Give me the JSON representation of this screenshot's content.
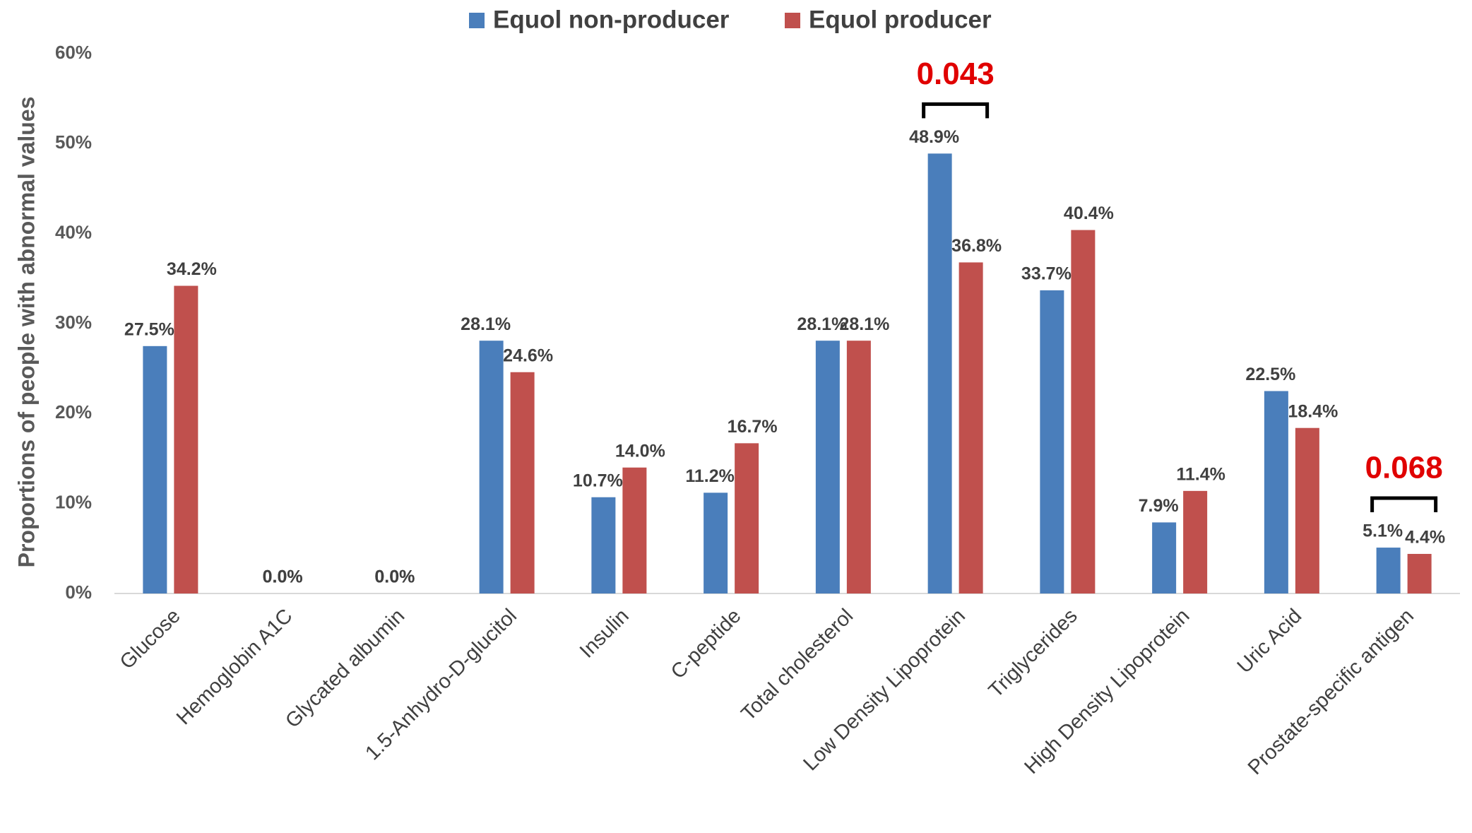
{
  "chart_data": {
    "type": "bar",
    "y_axis_label": "Proportions of people with  abnormal values",
    "categories": [
      "Glucose",
      "Hemoglobin A1C",
      "Glycated albumin",
      "1.5-Anhydro-D-glucitol",
      "Insulin",
      "C-peptide",
      "Total cholesterol",
      "Low Density Lipoprotein",
      "Triglycerides",
      "High Density Lipoprotein",
      "Uric Acid",
      "Prostate-specific antigen"
    ],
    "series": [
      {
        "name": "Equol non-producer",
        "color": "#4a7ebb",
        "values": [
          27.5,
          0,
          0,
          28.1,
          10.7,
          11.2,
          28.1,
          48.9,
          33.7,
          7.9,
          22.5,
          5.1
        ],
        "value_labels": [
          "27.5%",
          "0.0%",
          "0.0%",
          "28.1%",
          "10.7%",
          "11.2%",
          "28.1%",
          "48.9%",
          "33.7%",
          "7.9%",
          "22.5%",
          "5.1%"
        ]
      },
      {
        "name": "Equol producer",
        "color": "#c0504d",
        "values": [
          34.2,
          0,
          0,
          24.6,
          14.0,
          16.7,
          28.1,
          36.8,
          40.4,
          11.4,
          18.4,
          4.4
        ],
        "value_labels": [
          "34.2%",
          "0.0%",
          "0.0%",
          "24.6%",
          "14.0%",
          "16.7%",
          "28.1%",
          "36.8%",
          "40.4%",
          "11.4%",
          "18.4%",
          "4.4%"
        ]
      }
    ],
    "ylim": [
      0,
      60
    ],
    "yticks": [
      {
        "value": 0,
        "label": "0%"
      },
      {
        "value": 10,
        "label": "10%"
      },
      {
        "value": 20,
        "label": "20%"
      },
      {
        "value": 30,
        "label": "30%"
      },
      {
        "value": 40,
        "label": "40%"
      },
      {
        "value": 50,
        "label": "50%"
      },
      {
        "value": 60,
        "label": "60%"
      }
    ],
    "grid": false,
    "legend": "top",
    "annotations": [
      {
        "label": "0.043",
        "category": "Low Density Lipoprotein",
        "color": "#e00000"
      },
      {
        "label": "0.068",
        "category": "Prostate-specific antigen",
        "color": "#e00000"
      }
    ]
  }
}
